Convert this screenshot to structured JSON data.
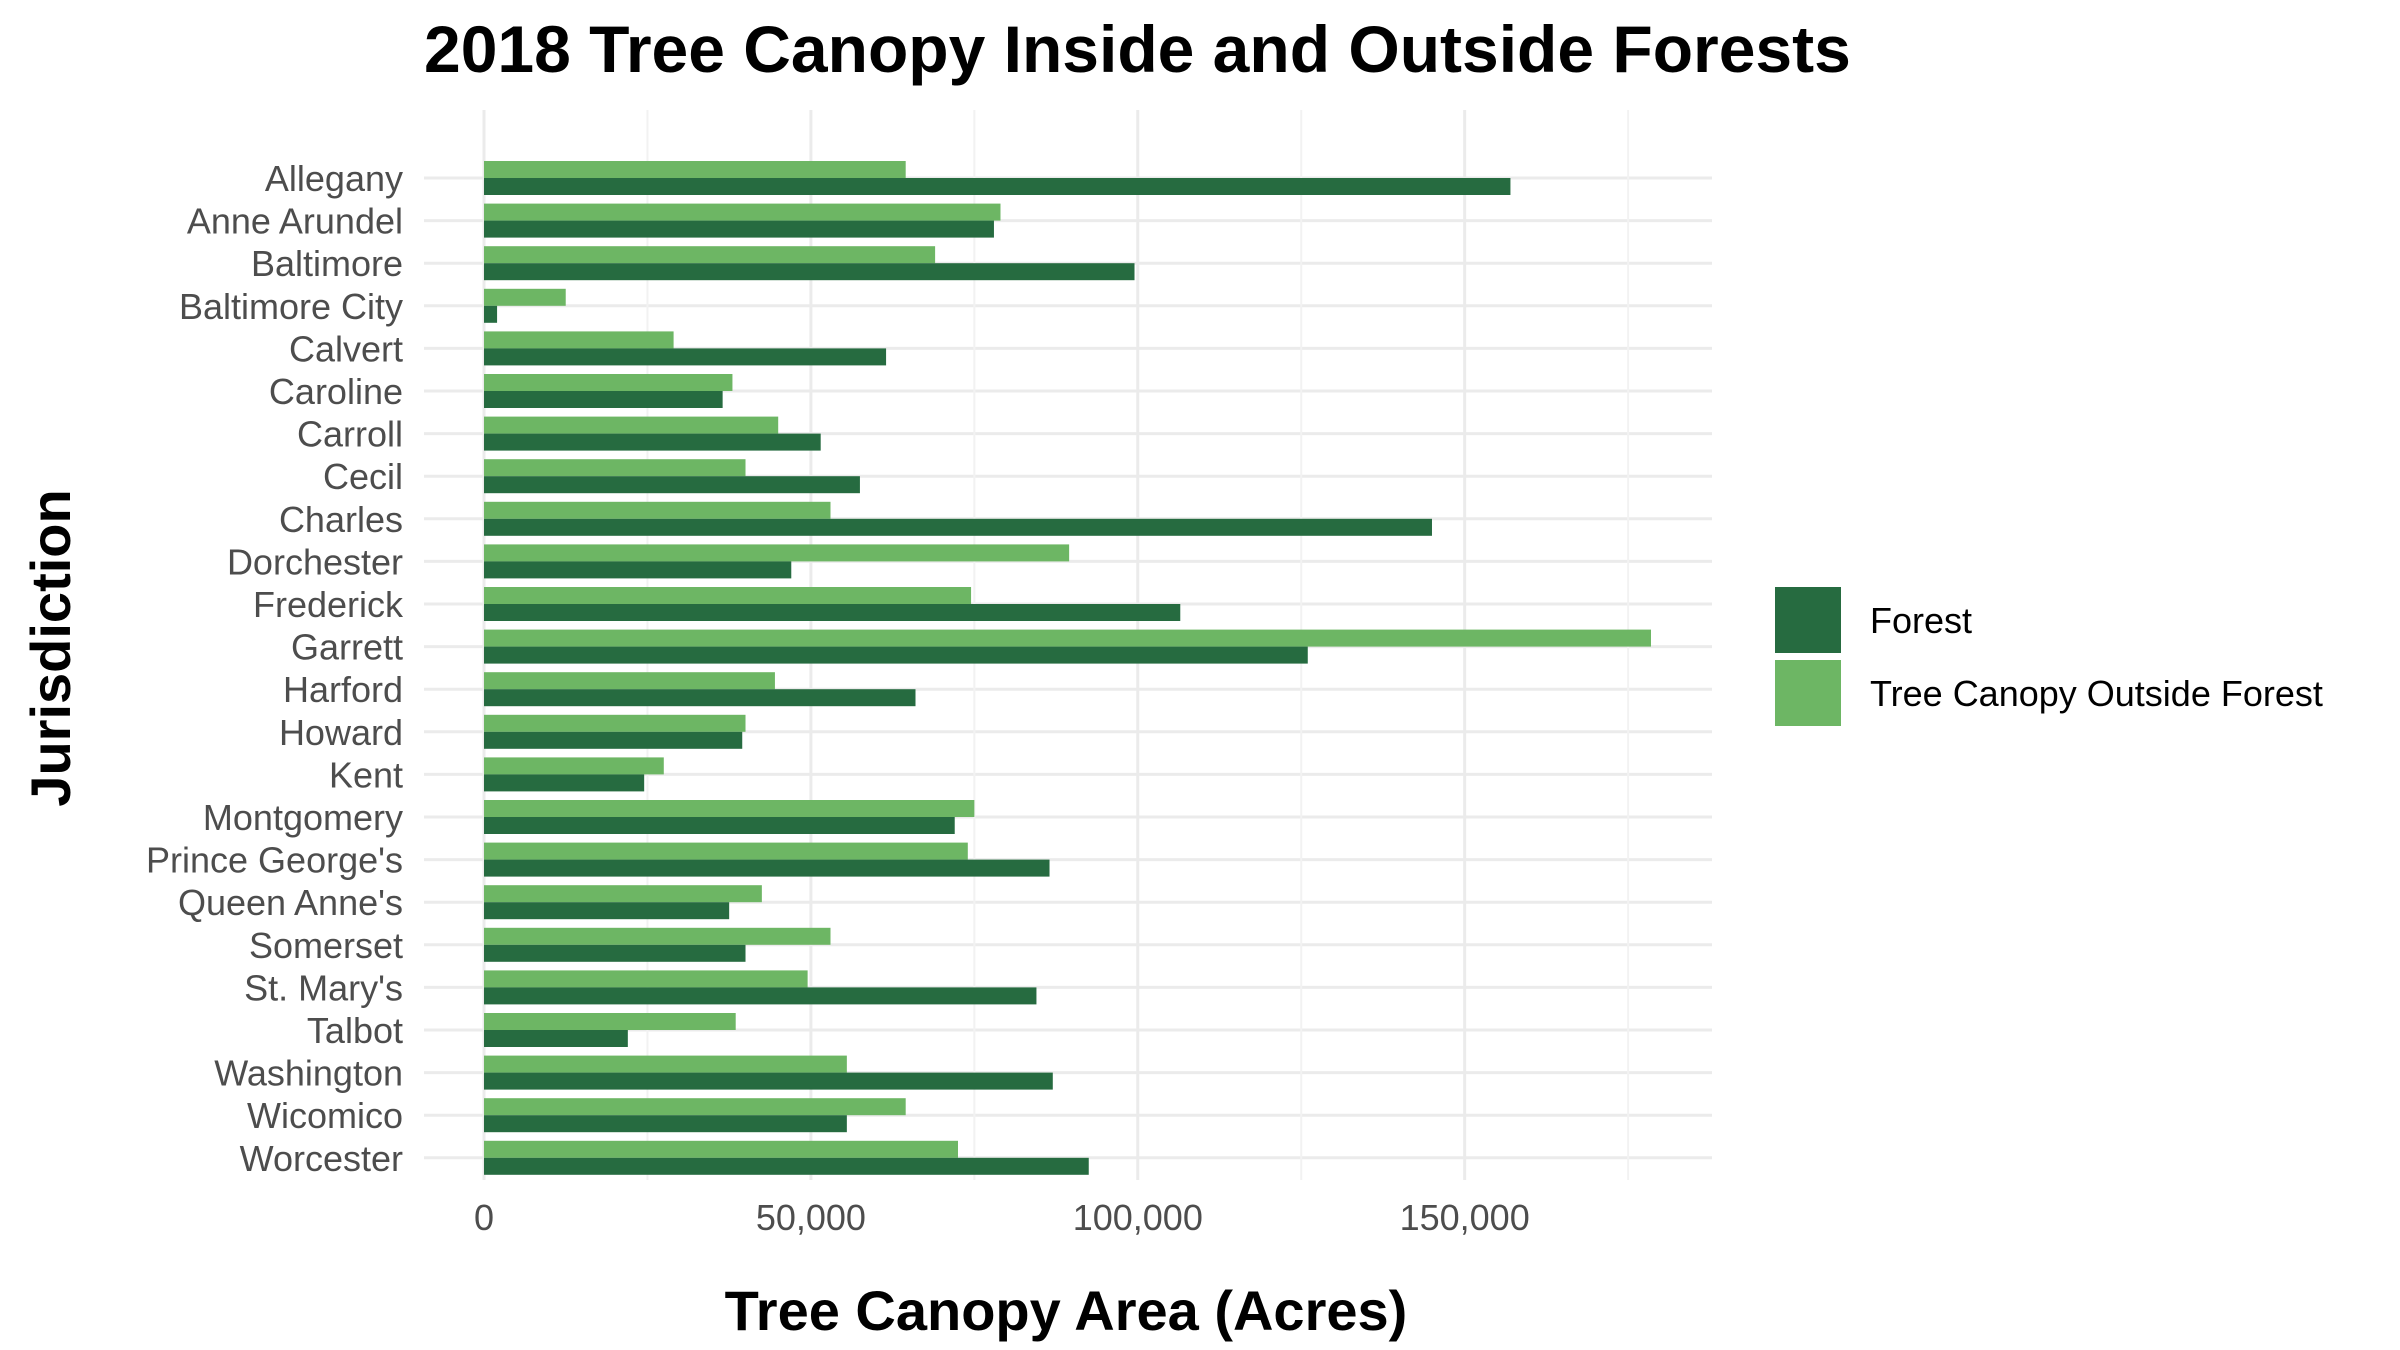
{
  "colors": {
    "forest": "#266b40",
    "outside": "#6db664"
  },
  "chart_data": {
    "type": "bar",
    "orientation": "horizontal",
    "title": "2018 Tree Canopy Inside and Outside Forests",
    "xlabel": "Tree Canopy Area (Acres)",
    "ylabel": "Jurisdiction",
    "xlim": [
      0,
      187500
    ],
    "x_ticks": [
      0,
      50000,
      100000,
      150000
    ],
    "x_tick_labels": [
      "0",
      "50,000",
      "100,000",
      "150,000"
    ],
    "grid": true,
    "legend_position": "right",
    "categories": [
      "Allegany",
      "Anne Arundel",
      "Baltimore",
      "Baltimore City",
      "Calvert",
      "Caroline",
      "Carroll",
      "Cecil",
      "Charles",
      "Dorchester",
      "Frederick",
      "Garrett",
      "Harford",
      "Howard",
      "Kent",
      "Montgomery",
      "Prince George's",
      "Queen Anne's",
      "Somerset",
      "St. Mary's",
      "Talbot",
      "Washington",
      "Wicomico",
      "Worcester"
    ],
    "series": [
      {
        "name": "Forest",
        "color": "#266b40",
        "values": [
          157000,
          78000,
          99500,
          2000,
          61500,
          36500,
          51500,
          57500,
          145000,
          47000,
          106500,
          126000,
          66000,
          39500,
          24500,
          72000,
          86500,
          37500,
          40000,
          84500,
          22000,
          87000,
          55500,
          92500
        ]
      },
      {
        "name": "Tree Canopy Outside Forest",
        "color": "#6db664",
        "values": [
          64500,
          79000,
          69000,
          12500,
          29000,
          38000,
          45000,
          40000,
          53000,
          89500,
          74500,
          178500,
          44500,
          40000,
          27500,
          75000,
          74000,
          42500,
          53000,
          49500,
          38500,
          55500,
          64500,
          72500
        ]
      }
    ]
  }
}
